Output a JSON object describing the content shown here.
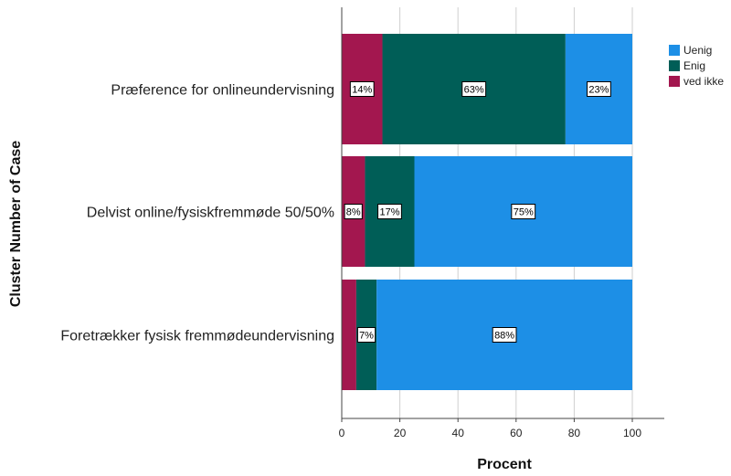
{
  "chart_data": {
    "type": "bar",
    "orientation": "horizontal",
    "stacked": true,
    "xlabel": "Procent",
    "ylabel": "Cluster Number of Case",
    "xlim": [
      0,
      100
    ],
    "xticks": [
      0,
      20,
      40,
      60,
      80,
      100
    ],
    "grid": true,
    "legend_position": "top-right",
    "categories": [
      "Præference for onlineundervisning",
      "Delvist online/fysiskfremmøde 50/50%",
      "Foretrækker fysisk fremmødeundervisning"
    ],
    "series": [
      {
        "name": "ved ikke",
        "color": "#a3174f",
        "values": [
          14,
          8,
          5
        ],
        "labels": [
          "14%",
          "8%",
          ""
        ]
      },
      {
        "name": "Enig",
        "color": "#005e57",
        "values": [
          63,
          17,
          7
        ],
        "labels": [
          "63%",
          "17%",
          "7%"
        ]
      },
      {
        "name": "Uenig",
        "color": "#1d8fe6",
        "values": [
          23,
          75,
          88
        ],
        "labels": [
          "23%",
          "75%",
          "88%"
        ]
      }
    ],
    "legend_order": [
      "Uenig",
      "Enig",
      "ved ikke"
    ]
  }
}
